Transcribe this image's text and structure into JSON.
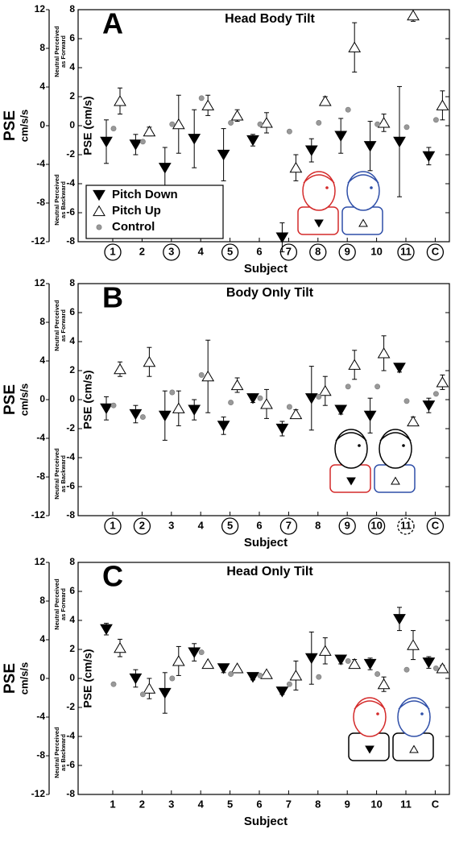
{
  "chart_data": [
    {
      "type": "scatter",
      "panel": "A",
      "title": "Head Body Tilt",
      "xlabel": "Subject",
      "ylabel": "PSE (cm/s)",
      "y2label": "PSE",
      "y2unit": "cm/s/s",
      "note_forward": [
        "Neutral Perceived",
        "as Forward"
      ],
      "note_backward": [
        "Neutral Perceived",
        "as Backward"
      ],
      "categories": [
        "1",
        "2",
        "3",
        "4",
        "5",
        "6",
        "7",
        "8",
        "9",
        "10",
        "11",
        "C"
      ],
      "circle": [
        "solid",
        "none",
        "solid",
        "none",
        "solid",
        "none",
        "solid",
        "solid",
        "solid",
        "none",
        "solid",
        "solid"
      ],
      "ylim": [
        -8,
        8
      ],
      "yticks": [
        -8,
        -6,
        -4,
        -2,
        0,
        2,
        4,
        6,
        8
      ],
      "y2lim": [
        -12,
        12
      ],
      "y2ticks": [
        -12,
        -8,
        -4,
        0,
        4,
        8,
        12
      ],
      "legend": "lower left",
      "figure_colors": {
        "heads": [
          "#d42a2a",
          "#2f4fa8"
        ],
        "bodies": [
          "#d42a2a",
          "#2f4fa8"
        ]
      },
      "series": [
        {
          "name": "Pitch Down",
          "marker": "triangle-down",
          "color": "#000000",
          "values": [
            -1.1,
            -1.3,
            -2.9,
            -0.9,
            -2.0,
            -1.0,
            -7.7,
            -1.7,
            -0.7,
            -1.4,
            -1.1,
            -2.1
          ],
          "errors": [
            1.5,
            0.7,
            1.4,
            2.0,
            1.8,
            0.4,
            1.0,
            0.8,
            1.2,
            1.7,
            3.8,
            0.6
          ]
        },
        {
          "name": "Pitch Up",
          "marker": "triangle-up",
          "color": "#ffffff",
          "values": [
            1.7,
            -0.4,
            0.1,
            1.4,
            0.7,
            0.2,
            -2.9,
            1.7,
            5.4,
            0.2,
            7.6,
            1.4
          ],
          "errors": [
            0.9,
            0.3,
            2.0,
            0.7,
            0.4,
            0.7,
            0.9,
            0.3,
            1.7,
            0.6,
            0.4,
            1.0
          ]
        },
        {
          "name": "Control",
          "marker": "circle",
          "color": "#999999",
          "values": [
            -0.2,
            -1.1,
            0.1,
            1.9,
            0.2,
            0.1,
            -0.4,
            0.2,
            1.1,
            0.1,
            -0.1,
            0.4
          ]
        }
      ]
    },
    {
      "type": "scatter",
      "panel": "B",
      "title": "Body Only Tilt",
      "xlabel": "Subject",
      "ylabel": "PSE (cm/s)",
      "y2label": "PSE",
      "y2unit": "cm/s/s",
      "note_forward": [
        "Neutral Perceived",
        "as Forward"
      ],
      "note_backward": [
        "Neutral Perceived",
        "as Backward"
      ],
      "categories": [
        "1",
        "2",
        "3",
        "4",
        "5",
        "6",
        "7",
        "8",
        "9",
        "10",
        "11",
        "C"
      ],
      "circle": [
        "solid",
        "solid",
        "none",
        "none",
        "solid",
        "none",
        "solid",
        "none",
        "solid",
        "solid",
        "dashed",
        "solid"
      ],
      "ylim": [
        -8,
        8
      ],
      "yticks": [
        -8,
        -6,
        -4,
        -2,
        0,
        2,
        4,
        6,
        8
      ],
      "y2lim": [
        -12,
        12
      ],
      "y2ticks": [
        -12,
        -8,
        -4,
        0,
        4,
        8,
        12
      ],
      "figure_colors": {
        "heads": [
          "#000000",
          "#000000"
        ],
        "bodies": [
          "#d42a2a",
          "#2f4fa8"
        ]
      },
      "series": [
        {
          "marker": "triangle-down",
          "color": "#000000",
          "values": [
            -0.6,
            -1.0,
            -1.1,
            -0.7,
            -1.8,
            0.1,
            -2.0,
            0.1,
            -0.7,
            -1.1,
            2.2,
            -0.4
          ],
          "errors": [
            0.8,
            0.6,
            1.7,
            0.7,
            0.6,
            0.3,
            0.5,
            2.2,
            0.3,
            1.2,
            0.3,
            0.5
          ]
        },
        {
          "marker": "triangle-up",
          "color": "#ffffff",
          "values": [
            2.1,
            2.6,
            -0.6,
            1.6,
            1.0,
            -0.3,
            -1.0,
            0.6,
            2.4,
            3.2,
            -1.5,
            1.2
          ],
          "errors": [
            0.5,
            1.0,
            1.2,
            2.5,
            0.5,
            1.0,
            0.3,
            1.0,
            1.0,
            1.2,
            0.3,
            0.5
          ]
        },
        {
          "marker": "circle",
          "color": "#999999",
          "values": [
            -0.4,
            -1.2,
            0.5,
            1.7,
            -0.2,
            0.1,
            -0.5,
            0.2,
            0.9,
            0.9,
            -0.1,
            0.4
          ]
        }
      ]
    },
    {
      "type": "scatter",
      "panel": "C",
      "title": "Head Only Tilt",
      "xlabel": "Subject",
      "ylabel": "PSE (cm/s)",
      "y2label": "PSE",
      "y2unit": "cm/s/s",
      "note_forward": [
        "Neutral Perceived",
        "as Forward"
      ],
      "note_backward": [
        "Neutral Perceived",
        "as Backward"
      ],
      "categories": [
        "1",
        "2",
        "3",
        "4",
        "5",
        "6",
        "7",
        "8",
        "9",
        "10",
        "11",
        "C"
      ],
      "circle": [
        "none",
        "none",
        "none",
        "none",
        "none",
        "none",
        "none",
        "none",
        "none",
        "none",
        "none",
        "none"
      ],
      "ylim": [
        -8,
        8
      ],
      "yticks": [
        -8,
        -6,
        -4,
        -2,
        0,
        2,
        4,
        6,
        8
      ],
      "y2lim": [
        -12,
        12
      ],
      "y2ticks": [
        -12,
        -8,
        -4,
        0,
        4,
        8,
        12
      ],
      "figure_colors": {
        "heads": [
          "#d42a2a",
          "#2f4fa8"
        ],
        "bodies": [
          "#000000",
          "#000000"
        ]
      },
      "series": [
        {
          "marker": "triangle-down",
          "color": "#000000",
          "values": [
            3.4,
            0.0,
            -1.0,
            1.8,
            0.7,
            0.1,
            -0.9,
            1.4,
            1.3,
            1.0,
            4.1,
            1.1
          ],
          "errors": [
            0.4,
            0.6,
            1.4,
            0.6,
            0.3,
            0.2,
            0.2,
            1.8,
            0.3,
            0.4,
            0.8,
            0.4
          ]
        },
        {
          "marker": "triangle-up",
          "color": "#ffffff",
          "values": [
            2.1,
            -0.7,
            1.2,
            1.0,
            0.7,
            0.3,
            0.2,
            1.9,
            1.0,
            -0.4,
            2.3,
            0.7
          ],
          "errors": [
            0.6,
            0.7,
            1.0,
            0.1,
            0.1,
            0.1,
            1.0,
            0.9,
            0.3,
            0.5,
            1.0,
            0.2
          ]
        },
        {
          "marker": "circle",
          "color": "#999999",
          "values": [
            -0.4,
            -1.1,
            0.0,
            1.8,
            0.3,
            0.2,
            -0.4,
            0.1,
            1.2,
            0.3,
            0.6,
            0.7
          ]
        }
      ]
    }
  ]
}
